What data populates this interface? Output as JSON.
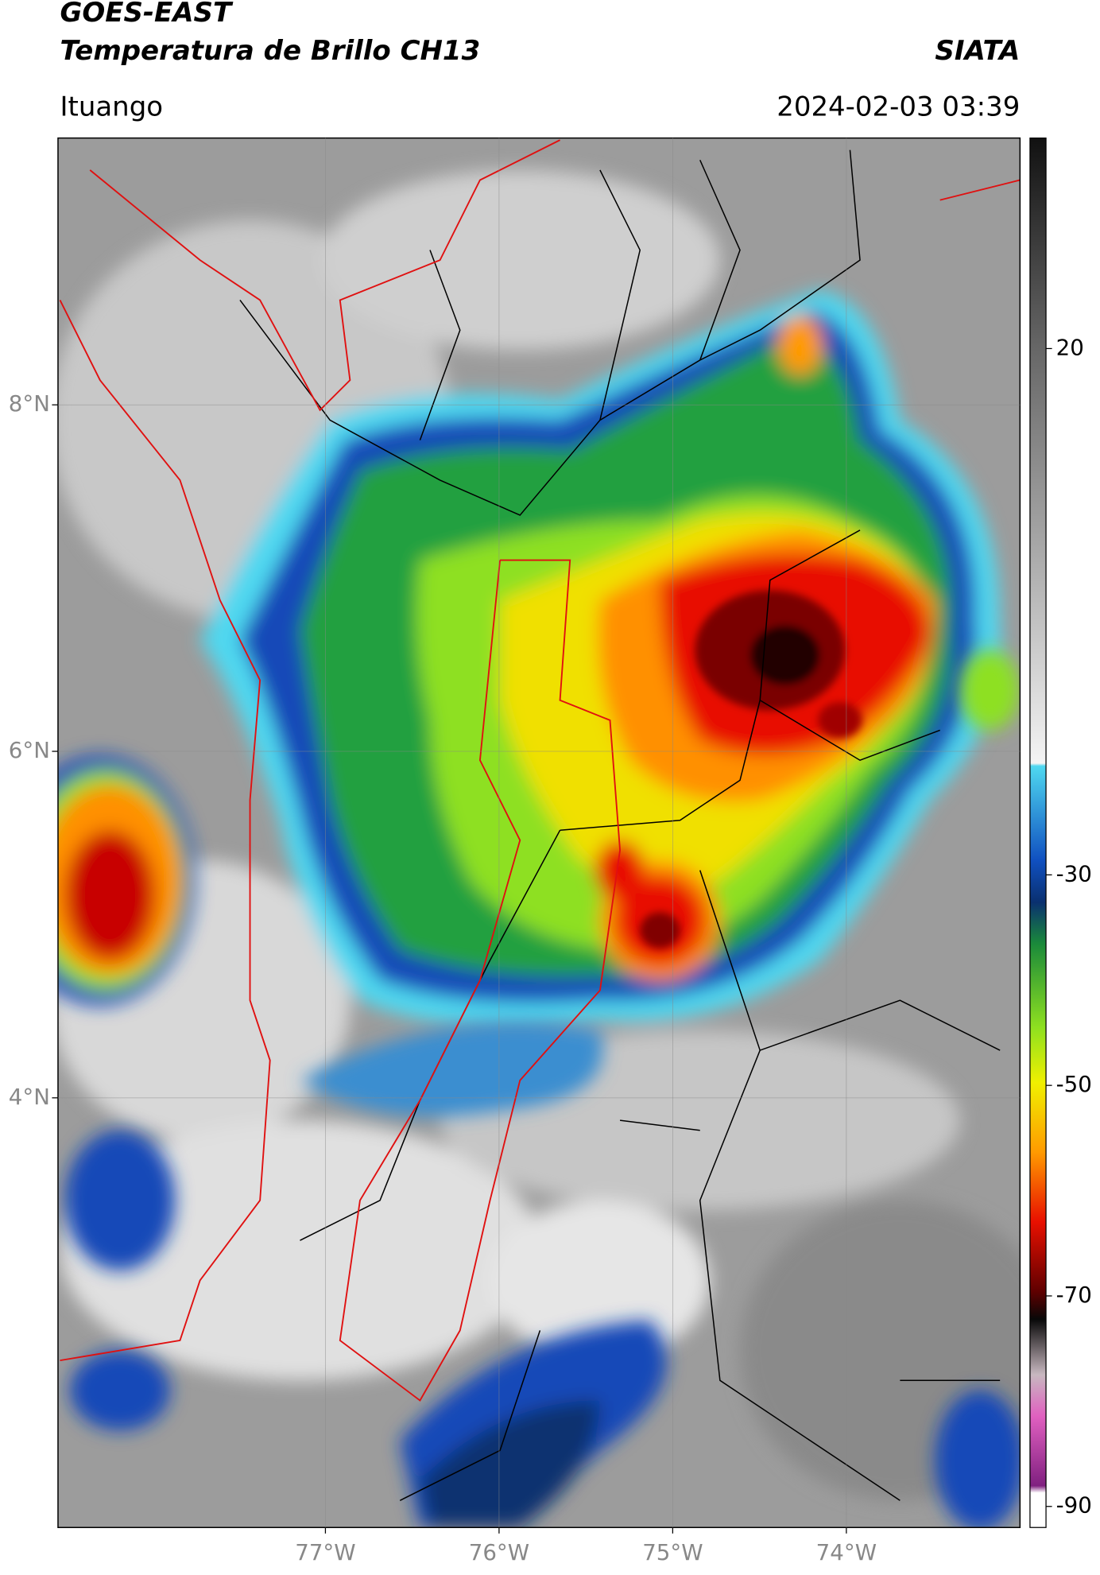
{
  "header": {
    "title": "GOES-EAST",
    "subtitle": "Temperatura de Brillo CH13",
    "brand": "SIATA",
    "location": "Ituango",
    "datetime": "2024-02-03 03:39"
  },
  "map": {
    "latlim": [
      1.52,
      9.54
    ],
    "lonlim": [
      -78.54,
      -73.0
    ],
    "lat_ticks": [
      {
        "value": 8,
        "label": "8°N"
      },
      {
        "value": 6,
        "label": "6°N"
      },
      {
        "value": 4,
        "label": "4°N"
      }
    ],
    "lon_ticks": [
      {
        "value": -77,
        "label": "77°W"
      },
      {
        "value": -76,
        "label": "76°W"
      },
      {
        "value": -75,
        "label": "75°W"
      },
      {
        "value": -74,
        "label": "74°W"
      }
    ],
    "grid": true
  },
  "colorbar": {
    "lim": [
      -92,
      40
    ],
    "ticks": [
      20,
      -30,
      -50,
      -70,
      -90
    ]
  }
}
